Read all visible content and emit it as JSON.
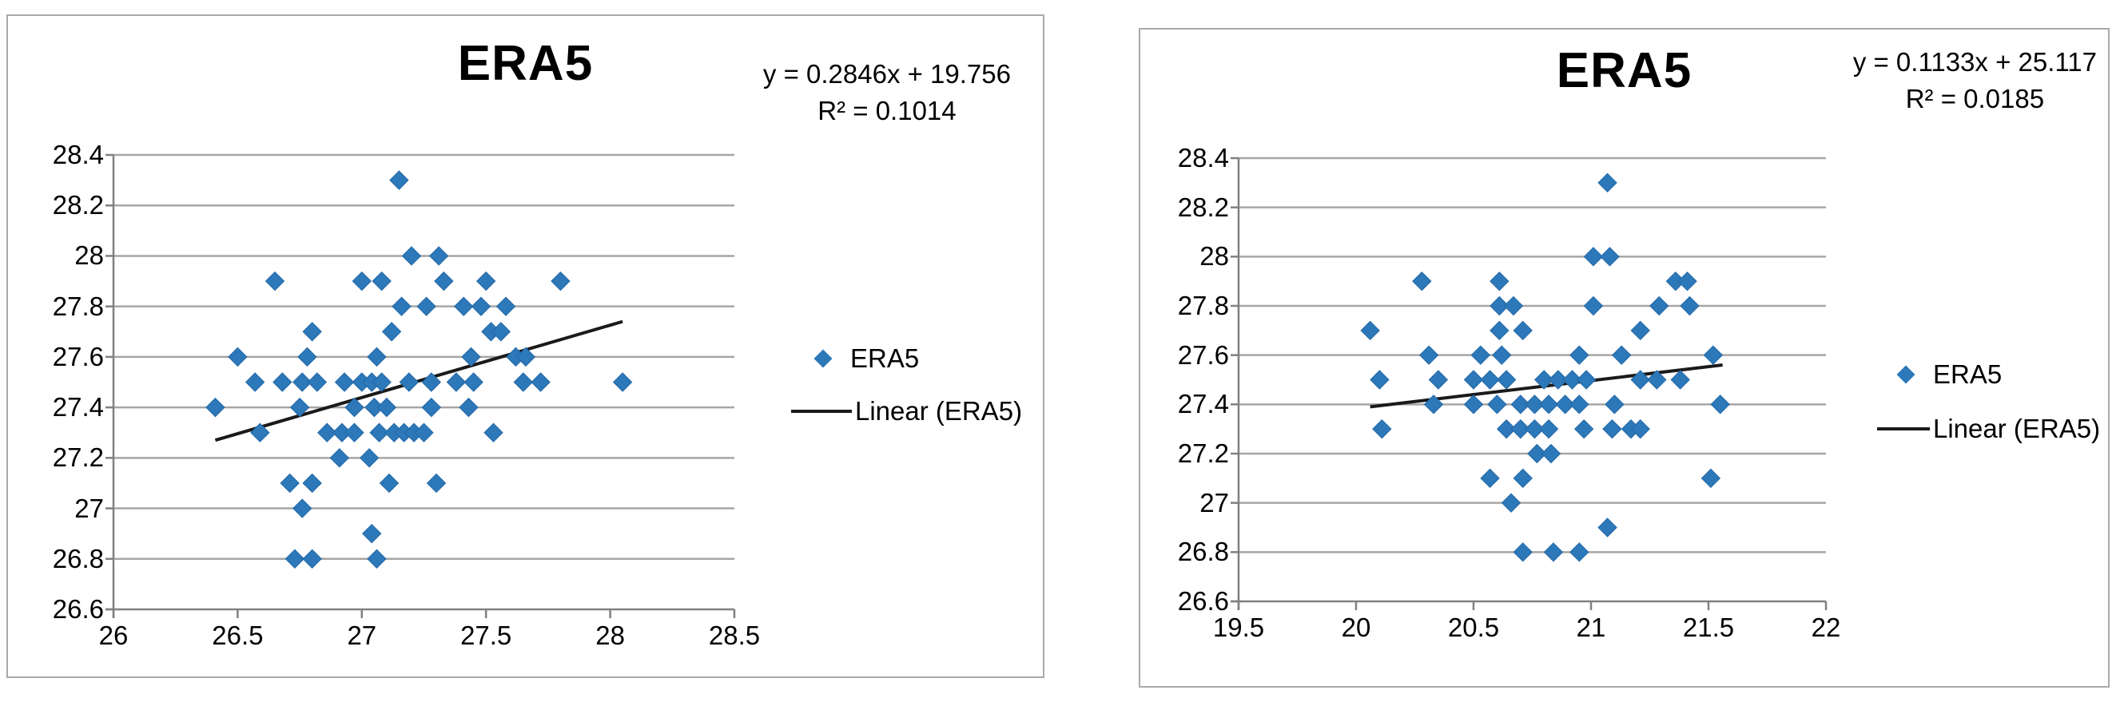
{
  "colors": {
    "marker_fill": "#2C78B8",
    "marker_stroke": "#2368A8",
    "trendline": "#1a1a1a",
    "gridline": "#A6A6A6",
    "axis": "#808080",
    "panel_border": "#A9A9A9",
    "text": "#000000",
    "background": "#ffffff"
  },
  "chart_data": [
    {
      "type": "scatter",
      "title": "ERA5",
      "equation": "y = 0.2846x + 19.756",
      "r_squared": "R² = 0.1014",
      "legend": {
        "marker_label": "ERA5",
        "line_label": "Linear (ERA5)"
      },
      "legend_position": "right-middle",
      "grid": "horizontal",
      "xlabel": "",
      "ylabel": "",
      "xlim": [
        26,
        28.5
      ],
      "ylim": [
        26.6,
        28.4
      ],
      "x_ticks": [
        26,
        26.5,
        27,
        27.5,
        28,
        28.5
      ],
      "x_tick_labels": [
        "26",
        "26.5",
        "27",
        "27.5",
        "28",
        "28.5"
      ],
      "y_ticks": [
        28.4,
        28.2,
        28,
        27.8,
        27.6,
        27.4,
        27.2,
        27,
        26.8,
        26.6
      ],
      "y_tick_labels": [
        "28.4",
        "28.2",
        "28",
        "27.8",
        "27.6",
        "27.4",
        "27.2",
        "27",
        "26.8",
        "26.6"
      ],
      "series": [
        {
          "name": "ERA5",
          "marker": "diamond",
          "points": [
            [
              27.15,
              28.3
            ],
            [
              27.2,
              28.0
            ],
            [
              27.31,
              28.0
            ],
            [
              26.65,
              27.9
            ],
            [
              27.0,
              27.9
            ],
            [
              27.08,
              27.9
            ],
            [
              27.33,
              27.9
            ],
            [
              27.5,
              27.9
            ],
            [
              27.8,
              27.9
            ],
            [
              27.16,
              27.8
            ],
            [
              27.26,
              27.8
            ],
            [
              27.41,
              27.8
            ],
            [
              27.48,
              27.8
            ],
            [
              27.58,
              27.8
            ],
            [
              26.8,
              27.7
            ],
            [
              27.12,
              27.7
            ],
            [
              27.52,
              27.7
            ],
            [
              27.56,
              27.7
            ],
            [
              26.5,
              27.6
            ],
            [
              26.78,
              27.6
            ],
            [
              27.06,
              27.6
            ],
            [
              27.44,
              27.6
            ],
            [
              27.62,
              27.6
            ],
            [
              27.66,
              27.6
            ],
            [
              26.57,
              27.5
            ],
            [
              26.68,
              27.5
            ],
            [
              26.76,
              27.5
            ],
            [
              26.82,
              27.5
            ],
            [
              26.93,
              27.5
            ],
            [
              27.0,
              27.5
            ],
            [
              27.04,
              27.5
            ],
            [
              27.08,
              27.5
            ],
            [
              27.19,
              27.5
            ],
            [
              27.28,
              27.5
            ],
            [
              27.38,
              27.5
            ],
            [
              27.45,
              27.5
            ],
            [
              27.65,
              27.5
            ],
            [
              27.72,
              27.5
            ],
            [
              28.05,
              27.5
            ],
            [
              26.41,
              27.4
            ],
            [
              26.75,
              27.4
            ],
            [
              26.97,
              27.4
            ],
            [
              27.05,
              27.4
            ],
            [
              27.1,
              27.4
            ],
            [
              27.28,
              27.4
            ],
            [
              27.43,
              27.4
            ],
            [
              26.59,
              27.3
            ],
            [
              26.86,
              27.3
            ],
            [
              26.92,
              27.3
            ],
            [
              26.97,
              27.3
            ],
            [
              27.07,
              27.3
            ],
            [
              27.13,
              27.3
            ],
            [
              27.17,
              27.3
            ],
            [
              27.21,
              27.3
            ],
            [
              27.25,
              27.3
            ],
            [
              27.53,
              27.3
            ],
            [
              26.91,
              27.2
            ],
            [
              27.03,
              27.2
            ],
            [
              26.71,
              27.1
            ],
            [
              26.8,
              27.1
            ],
            [
              27.11,
              27.1
            ],
            [
              27.3,
              27.1
            ],
            [
              26.76,
              27.0
            ],
            [
              27.04,
              26.9
            ],
            [
              26.73,
              26.8
            ],
            [
              26.8,
              26.8
            ],
            [
              27.06,
              26.8
            ]
          ]
        }
      ],
      "trendline": {
        "label": "Linear (ERA5)",
        "x_start": 26.41,
        "y_start": 27.27,
        "x_end": 28.05,
        "y_end": 27.74
      }
    },
    {
      "type": "scatter",
      "title": "ERA5",
      "equation": "y = 0.1133x + 25.117",
      "r_squared": "R² = 0.0185",
      "legend": {
        "marker_label": "ERA5",
        "line_label": "Linear (ERA5)"
      },
      "legend_position": "right-middle",
      "grid": "horizontal",
      "xlabel": "",
      "ylabel": "",
      "xlim": [
        19.5,
        22
      ],
      "ylim": [
        26.6,
        28.4
      ],
      "x_ticks": [
        19.5,
        20,
        20.5,
        21,
        21.5,
        22
      ],
      "x_tick_labels": [
        "19.5",
        "20",
        "20.5",
        "21",
        "21.5",
        "22"
      ],
      "y_ticks": [
        28.4,
        28.2,
        28,
        27.8,
        27.6,
        27.4,
        27.2,
        27,
        26.8,
        26.6
      ],
      "y_tick_labels": [
        "28.4",
        "28.2",
        "28",
        "27.8",
        "27.6",
        "27.4",
        "27.2",
        "27",
        "26.8",
        "26.6"
      ],
      "series": [
        {
          "name": "ERA5",
          "marker": "diamond",
          "points": [
            [
              21.07,
              28.3
            ],
            [
              21.01,
              28.0
            ],
            [
              21.08,
              28.0
            ],
            [
              20.28,
              27.9
            ],
            [
              20.61,
              27.9
            ],
            [
              21.36,
              27.9
            ],
            [
              21.41,
              27.9
            ],
            [
              20.61,
              27.8
            ],
            [
              20.67,
              27.8
            ],
            [
              21.01,
              27.8
            ],
            [
              21.29,
              27.8
            ],
            [
              21.42,
              27.8
            ],
            [
              20.06,
              27.7
            ],
            [
              20.61,
              27.7
            ],
            [
              20.71,
              27.7
            ],
            [
              21.21,
              27.7
            ],
            [
              20.31,
              27.6
            ],
            [
              20.53,
              27.6
            ],
            [
              20.62,
              27.6
            ],
            [
              20.95,
              27.6
            ],
            [
              21.13,
              27.6
            ],
            [
              21.52,
              27.6
            ],
            [
              20.1,
              27.5
            ],
            [
              20.35,
              27.5
            ],
            [
              20.5,
              27.5
            ],
            [
              20.57,
              27.5
            ],
            [
              20.64,
              27.5
            ],
            [
              20.8,
              27.5
            ],
            [
              20.86,
              27.5
            ],
            [
              20.92,
              27.5
            ],
            [
              20.98,
              27.5
            ],
            [
              21.21,
              27.5
            ],
            [
              21.28,
              27.5
            ],
            [
              21.38,
              27.5
            ],
            [
              20.33,
              27.4
            ],
            [
              20.5,
              27.4
            ],
            [
              20.6,
              27.4
            ],
            [
              20.7,
              27.4
            ],
            [
              20.76,
              27.4
            ],
            [
              20.82,
              27.4
            ],
            [
              20.89,
              27.4
            ],
            [
              20.95,
              27.4
            ],
            [
              21.1,
              27.4
            ],
            [
              21.55,
              27.4
            ],
            [
              20.11,
              27.3
            ],
            [
              20.64,
              27.3
            ],
            [
              20.7,
              27.3
            ],
            [
              20.76,
              27.3
            ],
            [
              20.82,
              27.3
            ],
            [
              20.97,
              27.3
            ],
            [
              21.09,
              27.3
            ],
            [
              21.17,
              27.3
            ],
            [
              21.21,
              27.3
            ],
            [
              20.77,
              27.2
            ],
            [
              20.83,
              27.2
            ],
            [
              20.57,
              27.1
            ],
            [
              20.71,
              27.1
            ],
            [
              21.51,
              27.1
            ],
            [
              20.66,
              27.0
            ],
            [
              21.07,
              26.9
            ],
            [
              20.71,
              26.8
            ],
            [
              20.84,
              26.8
            ],
            [
              20.95,
              26.8
            ]
          ]
        }
      ],
      "trendline": {
        "label": "Linear (ERA5)",
        "x_start": 20.06,
        "y_start": 27.39,
        "x_end": 21.56,
        "y_end": 27.56
      }
    }
  ]
}
